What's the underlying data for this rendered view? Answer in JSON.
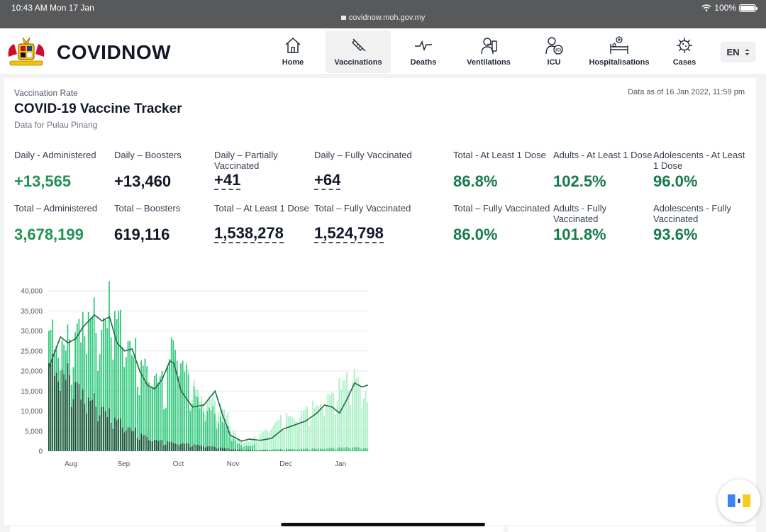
{
  "status_bar": {
    "time": "10:43 AM   Mon 17 Jan",
    "url": "covidnow.moh.gov.my",
    "battery": "100%"
  },
  "header": {
    "brand": "COVIDNOW",
    "nav": [
      {
        "label": "Home",
        "icon": "home-icon"
      },
      {
        "label": "Vaccinations",
        "icon": "syringe-icon",
        "active": true
      },
      {
        "label": "Deaths",
        "icon": "pulse-icon"
      },
      {
        "label": "Ventilations",
        "icon": "ventilator-icon"
      },
      {
        "label": "ICU",
        "icon": "icu-icon"
      },
      {
        "label": "Hospitalisations",
        "icon": "hospital-bed-icon"
      },
      {
        "label": "Cases",
        "icon": "virus-icon"
      }
    ],
    "language": "EN"
  },
  "page": {
    "eyebrow": "Vaccination Rate",
    "title": "COVID-19 Vaccine Tracker",
    "subtitle": "Data for Pulau Pinang",
    "as_of": "Data as of 16 Jan 2022, 11:59 pm"
  },
  "stats_row1": [
    {
      "label": "Daily - Administered",
      "value": "+13,565",
      "style": "green"
    },
    {
      "label": "Daily – Boosters",
      "value": "+13,460",
      "style": "plain"
    },
    {
      "label": "Daily – Partially Vaccinated",
      "value": "+41",
      "style": "dash"
    },
    {
      "label": "Daily – Fully Vaccinated",
      "value": "+64",
      "style": "dash"
    },
    {
      "label": "Total - At Least 1 Dose",
      "value": "86.8%",
      "style": "teal"
    },
    {
      "label": "Adults - At Least 1 Dose",
      "value": "102.5%",
      "style": "teal"
    },
    {
      "label": "Adolescents - At Least 1 Dose",
      "value": "96.0%",
      "style": "teal"
    }
  ],
  "stats_row2": [
    {
      "label": "Total – Administered",
      "value": "3,678,199",
      "style": "green"
    },
    {
      "label": "Total – Boosters",
      "value": "619,116",
      "style": "plain"
    },
    {
      "label": "Total – At Least 1 Dose",
      "value": "1,538,278",
      "style": "dash"
    },
    {
      "label": "Total – Fully Vaccinated",
      "value": "1,524,798",
      "style": "dash"
    },
    {
      "label": "Total – Fully Vaccinated",
      "value": "86.0%",
      "style": "teal"
    },
    {
      "label": "Adults - Fully Vaccinated",
      "value": "101.8%",
      "style": "teal"
    },
    {
      "label": "Adolescents - Fully Vaccinated",
      "value": "93.6%",
      "style": "teal"
    }
  ],
  "colors": {
    "first_dose": "#0f5132",
    "second_dose": "#2fc77a",
    "booster": "#a7f0c4",
    "moving_avg": "#1f6a45"
  },
  "chart_data": {
    "type": "bar",
    "stacked": true,
    "ylim": [
      0,
      40000
    ],
    "yticks": [
      "40,000",
      "35,000",
      "30,000",
      "25,000",
      "20,000",
      "15,000",
      "10,000",
      "5,000",
      "0"
    ],
    "ytick_values": [
      40000,
      35000,
      30000,
      25000,
      20000,
      15000,
      10000,
      5000,
      0
    ],
    "x_labels": [
      "Aug",
      "Sep",
      "Oct",
      "Nov",
      "Dec",
      "Jan"
    ],
    "x_label_positions_days": [
      12,
      40,
      69,
      98,
      126,
      155
    ],
    "days": 170,
    "daily_total_keypoints": [
      [
        0,
        30000
      ],
      [
        6,
        28000
      ],
      [
        12,
        27000
      ],
      [
        20,
        36000
      ],
      [
        28,
        30000
      ],
      [
        32,
        37500
      ],
      [
        36,
        34000
      ],
      [
        42,
        28000
      ],
      [
        48,
        22000
      ],
      [
        56,
        20000
      ],
      [
        62,
        16000
      ],
      [
        66,
        30000
      ],
      [
        70,
        24000
      ],
      [
        74,
        19000
      ],
      [
        80,
        14000
      ],
      [
        88,
        13000
      ],
      [
        94,
        10000
      ],
      [
        100,
        3000
      ],
      [
        106,
        2500
      ],
      [
        112,
        4000
      ],
      [
        120,
        7500
      ],
      [
        130,
        9000
      ],
      [
        140,
        11000
      ],
      [
        150,
        14000
      ],
      [
        158,
        19000
      ],
      [
        164,
        18000
      ],
      [
        169,
        14000
      ]
    ],
    "first_dose_keypoints": [
      [
        0,
        22000
      ],
      [
        6,
        21000
      ],
      [
        12,
        18000
      ],
      [
        20,
        14000
      ],
      [
        28,
        11000
      ],
      [
        36,
        8000
      ],
      [
        44,
        5500
      ],
      [
        52,
        3500
      ],
      [
        60,
        2500
      ],
      [
        70,
        2000
      ],
      [
        80,
        1500
      ],
      [
        90,
        1000
      ],
      [
        100,
        400
      ],
      [
        110,
        200
      ],
      [
        130,
        100
      ],
      [
        169,
        50
      ]
    ],
    "second_dose_ratio_end_day": 110,
    "moving_avg_keypoints": [
      [
        0,
        21000
      ],
      [
        6,
        28500
      ],
      [
        10,
        27000
      ],
      [
        14,
        28000
      ],
      [
        18,
        31000
      ],
      [
        24,
        34000
      ],
      [
        28,
        32500
      ],
      [
        32,
        33500
      ],
      [
        36,
        27000
      ],
      [
        40,
        25000
      ],
      [
        44,
        25500
      ],
      [
        48,
        20000
      ],
      [
        52,
        16500
      ],
      [
        56,
        15500
      ],
      [
        60,
        18000
      ],
      [
        64,
        22500
      ],
      [
        66,
        22000
      ],
      [
        70,
        15000
      ],
      [
        76,
        11000
      ],
      [
        82,
        11500
      ],
      [
        88,
        15000
      ],
      [
        92,
        9000
      ],
      [
        96,
        4000
      ],
      [
        102,
        2500
      ],
      [
        106,
        3000
      ],
      [
        112,
        2700
      ],
      [
        118,
        3200
      ],
      [
        124,
        5500
      ],
      [
        130,
        6500
      ],
      [
        136,
        7500
      ],
      [
        142,
        9500
      ],
      [
        146,
        11500
      ],
      [
        150,
        11000
      ],
      [
        154,
        9500
      ],
      [
        158,
        13000
      ],
      [
        162,
        17000
      ],
      [
        166,
        16000
      ],
      [
        169,
        16500
      ]
    ]
  }
}
